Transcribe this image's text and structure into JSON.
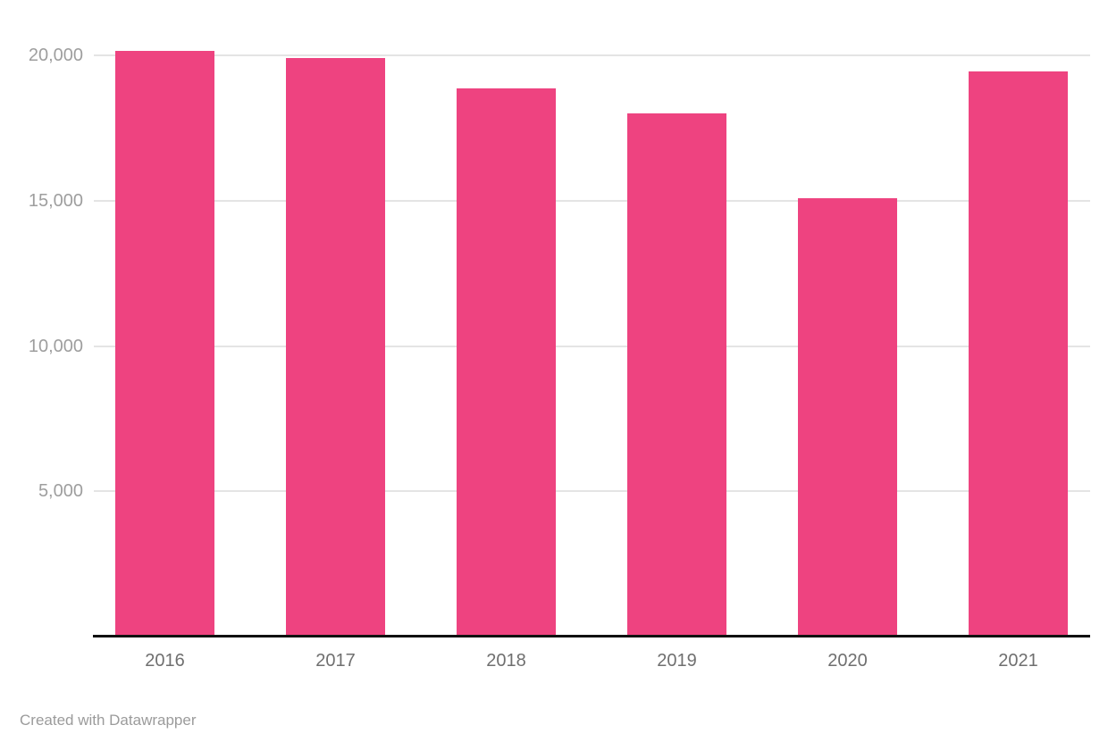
{
  "chart_data": {
    "type": "bar",
    "categories": [
      "2016",
      "2017",
      "2018",
      "2019",
      "2020",
      "2021"
    ],
    "values": [
      20150,
      19900,
      18850,
      18000,
      15100,
      19450
    ],
    "title": "",
    "xlabel": "",
    "ylabel": "",
    "ylim": [
      0,
      20000
    ],
    "yticks": [
      5000,
      10000,
      15000,
      20000
    ],
    "ytick_labels": [
      "5,000",
      "10,000",
      "15,000",
      "20,000"
    ],
    "grid": true,
    "legend": "none",
    "bar_color": "#ee4380"
  },
  "footer": {
    "attribution": "Created with Datawrapper"
  },
  "colors": {
    "background": "#ffffff",
    "bar": "#ee4380",
    "gridline": "#e4e4e4",
    "baseline": "#111111",
    "y_label": "#9e9e9e",
    "x_label": "#6f6f6f",
    "footer_text": "#9b9b9b"
  }
}
